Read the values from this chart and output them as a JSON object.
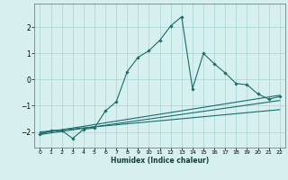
{
  "xlabel": "Humidex (Indice chaleur)",
  "background_color": "#d6f0f0",
  "grid_color": "#b0d8d8",
  "line_color": "#1a6b6b",
  "xlim": [
    -0.5,
    22.5
  ],
  "ylim": [
    -2.6,
    2.9
  ],
  "yticks": [
    -2,
    -1,
    0,
    1,
    2
  ],
  "xticks": [
    0,
    1,
    2,
    3,
    4,
    5,
    6,
    7,
    8,
    9,
    10,
    11,
    12,
    13,
    14,
    15,
    16,
    17,
    18,
    19,
    20,
    21,
    22
  ],
  "main_line_x": [
    0,
    1,
    2,
    3,
    4,
    5,
    6,
    7,
    8,
    9,
    10,
    11,
    12,
    13,
    14,
    15,
    16,
    17,
    18,
    19,
    20,
    21,
    22
  ],
  "main_line_y": [
    -2.1,
    -1.95,
    -1.95,
    -2.25,
    -1.9,
    -1.85,
    -1.2,
    -0.85,
    0.3,
    0.85,
    1.1,
    1.5,
    2.05,
    2.4,
    -0.35,
    1.0,
    0.6,
    0.25,
    -0.15,
    -0.2,
    -0.55,
    -0.75,
    -0.65
  ],
  "reg_line1_x": [
    0,
    22
  ],
  "reg_line1_y": [
    -2.05,
    -0.6
  ],
  "reg_line2_x": [
    0,
    22
  ],
  "reg_line2_y": [
    -2.1,
    -0.8
  ],
  "reg_line3_x": [
    0,
    22
  ],
  "reg_line3_y": [
    -2.0,
    -1.15
  ]
}
